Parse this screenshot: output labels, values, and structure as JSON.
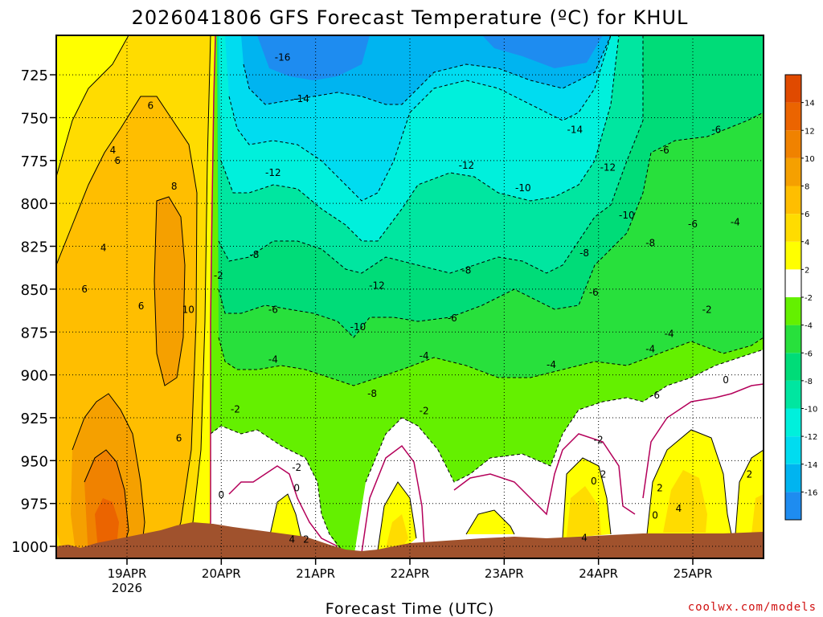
{
  "chart_data": {
    "type": "heatmap",
    "title": "2026041806 GFS Forecast Temperature (ºC) for KHUL",
    "xlabel": "Forecast Time (UTC)",
    "ylabel": "",
    "credit": "coolwx.com/models",
    "x_ticks": [
      {
        "label": "19APR",
        "sub": "2026",
        "t": 0.75
      },
      {
        "label": "20APR",
        "sub": "",
        "t": 1.75
      },
      {
        "label": "21APR",
        "sub": "",
        "t": 2.75
      },
      {
        "label": "22APR",
        "sub": "",
        "t": 3.75
      },
      {
        "label": "23APR",
        "sub": "",
        "t": 4.75
      },
      {
        "label": "24APR",
        "sub": "",
        "t": 5.75
      },
      {
        "label": "25APR",
        "sub": "",
        "t": 6.75
      }
    ],
    "xlim": [
      0,
      7.5
    ],
    "y_ticks": [
      "725",
      "750",
      "775",
      "800",
      "825",
      "850",
      "875",
      "900",
      "925",
      "950",
      "975",
      "1000"
    ],
    "ylim": [
      1007,
      702
    ],
    "colorbar": {
      "levels": [
        -18,
        -16,
        -14,
        -12,
        -10,
        -8,
        -6,
        -4,
        -2,
        2,
        4,
        6,
        8,
        10,
        12,
        14,
        16
      ],
      "tick_labels": [
        "-16",
        "-14",
        "-12",
        "-10",
        "-8",
        "-6",
        "-4",
        "-2",
        "2",
        "4",
        "6",
        "8",
        "10",
        "12",
        "14"
      ],
      "colors": [
        "#1e8cf0",
        "#00b4f0",
        "#00dcf0",
        "#00f0dc",
        "#00e6a0",
        "#00dc78",
        "#28e03c",
        "#64f000",
        "#ffffff",
        "#ffff00",
        "#ffdc00",
        "#ffbe00",
        "#f5a000",
        "#f08200",
        "#eb6400",
        "#e04a00"
      ]
    },
    "contour_labels": [
      {
        "t": 0.6,
        "p": 769,
        "text": "4"
      },
      {
        "t": 0.65,
        "p": 775,
        "text": "6"
      },
      {
        "t": 1.0,
        "p": 743,
        "text": "6"
      },
      {
        "t": 1.25,
        "p": 790,
        "text": "8"
      },
      {
        "t": 0.5,
        "p": 826,
        "text": "4"
      },
      {
        "t": 0.3,
        "p": 850,
        "text": "6"
      },
      {
        "t": 0.9,
        "p": 860,
        "text": "6"
      },
      {
        "t": 1.4,
        "p": 862,
        "text": "10"
      },
      {
        "t": 1.3,
        "p": 937,
        "text": "6"
      },
      {
        "t": 1.72,
        "p": 842,
        "text": "-2"
      },
      {
        "t": 1.75,
        "p": 970,
        "text": "0"
      },
      {
        "t": 2.1,
        "p": 830,
        "text": "-8"
      },
      {
        "t": 2.55,
        "p": 966,
        "text": "0"
      },
      {
        "t": 2.55,
        "p": 954,
        "text": "-2"
      },
      {
        "t": 2.65,
        "p": 996,
        "text": "2"
      },
      {
        "t": 2.5,
        "p": 996,
        "text": "4"
      },
      {
        "t": 1.9,
        "p": 920,
        "text": "-2"
      },
      {
        "t": 2.3,
        "p": 891,
        "text": "-4"
      },
      {
        "t": 2.3,
        "p": 862,
        "text": "-6"
      },
      {
        "t": 2.6,
        "p": 739,
        "text": "-14"
      },
      {
        "t": 2.4,
        "p": 715,
        "text": "-16"
      },
      {
        "t": 2.3,
        "p": 782,
        "text": "-12"
      },
      {
        "t": 3.4,
        "p": 848,
        "text": "-12"
      },
      {
        "t": 3.2,
        "p": 872,
        "text": "-10"
      },
      {
        "t": 3.35,
        "p": 911,
        "text": "-8"
      },
      {
        "t": 3.9,
        "p": 889,
        "text": "-4"
      },
      {
        "t": 3.9,
        "p": 921,
        "text": "-2"
      },
      {
        "t": 4.2,
        "p": 867,
        "text": "-6"
      },
      {
        "t": 4.35,
        "p": 839,
        "text": "-8"
      },
      {
        "t": 4.35,
        "p": 778,
        "text": "-12"
      },
      {
        "t": 4.95,
        "p": 791,
        "text": "-10"
      },
      {
        "t": 5.5,
        "p": 757,
        "text": "-14"
      },
      {
        "t": 5.6,
        "p": 829,
        "text": "-8"
      },
      {
        "t": 5.25,
        "p": 894,
        "text": "-4"
      },
      {
        "t": 5.7,
        "p": 852,
        "text": "-6"
      },
      {
        "t": 5.75,
        "p": 938,
        "text": "-2"
      },
      {
        "t": 5.7,
        "p": 962,
        "text": "0"
      },
      {
        "t": 5.8,
        "p": 958,
        "text": "2"
      },
      {
        "t": 5.6,
        "p": 995,
        "text": "4"
      },
      {
        "t": 5.85,
        "p": 779,
        "text": "-12"
      },
      {
        "t": 6.05,
        "p": 807,
        "text": "-10"
      },
      {
        "t": 6.3,
        "p": 823,
        "text": "-8"
      },
      {
        "t": 6.3,
        "p": 885,
        "text": "-4"
      },
      {
        "t": 6.35,
        "p": 912,
        "text": "-6"
      },
      {
        "t": 6.4,
        "p": 966,
        "text": "2"
      },
      {
        "t": 6.35,
        "p": 982,
        "text": "0"
      },
      {
        "t": 6.45,
        "p": 769,
        "text": "-6"
      },
      {
        "t": 6.75,
        "p": 812,
        "text": "-6"
      },
      {
        "t": 6.5,
        "p": 876,
        "text": "-4"
      },
      {
        "t": 6.9,
        "p": 862,
        "text": "-2"
      },
      {
        "t": 7.1,
        "p": 903,
        "text": "0"
      },
      {
        "t": 6.6,
        "p": 978,
        "text": "4"
      },
      {
        "t": 7.35,
        "p": 958,
        "text": "2"
      },
      {
        "t": 7.0,
        "p": 757,
        "text": "-6"
      },
      {
        "t": 7.2,
        "p": 811,
        "text": "-4"
      }
    ]
  }
}
